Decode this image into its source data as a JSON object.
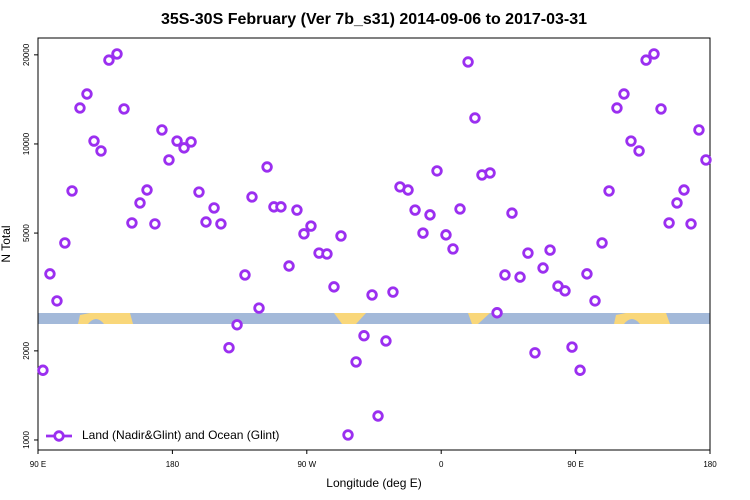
{
  "chart_data": {
    "type": "scatter",
    "title": "35S-30S February (Ver 7b_s31)   2014-09-06 to 2017-03-31",
    "x_label": "Longitude (deg E)",
    "y_label": "N Total",
    "x": [
      93.3,
      98,
      102.7,
      108,
      112.8,
      118.1,
      122.8,
      127.5,
      132.2,
      137.5,
      142.9,
      147.6,
      152.9,
      158.3,
      163,
      168.3,
      173,
      177.7,
      183.1,
      187.8,
      192.5,
      197.8,
      202.5,
      207.9,
      212.5,
      217.9,
      223.3,
      228.6,
      233.3,
      238,
      243.4,
      248,
      252.7,
      258.1,
      263.4,
      268.1,
      272.8,
      278.2,
      283.5,
      288.2,
      292.9,
      297.6,
      303,
      308.3,
      313.7,
      317.7,
      323,
      327.7,
      332.4,
      337.8,
      342.5,
      347.8,
      352.5,
      357.2,
      363.2,
      367.9,
      372.6,
      378,
      382.6,
      387.3,
      392.7,
      397.4,
      402.7,
      407.4,
      412.8,
      418.1,
      422.8,
      428.2,
      432.9,
      438.2,
      442.9,
      447.6,
      453,
      457.6,
      463,
      467.7,
      472.4,
      477.7,
      482.4,
      487.1,
      492.5,
      497.2,
      502.5,
      507.2,
      512.6,
      517.9,
      522.6,
      527.3,
      532.6,
      537.3
    ],
    "series": [
      {
        "name": "Land (Nadir&Glint) and Ocean (Glint)",
        "color": "#9b2ff0",
        "values": [
          1720,
          3640,
          2950,
          4630,
          6940,
          13230,
          14750,
          10230,
          9470,
          19200,
          20140,
          13130,
          5410,
          6320,
          6990,
          5370,
          11150,
          8830,
          10230,
          9700,
          10160,
          6880,
          5450,
          6080,
          5370,
          2050,
          2450,
          3610,
          6620,
          2790,
          8360,
          6130,
          6130,
          3870,
          5980,
          4970,
          5280,
          4280,
          4250,
          3290,
          4890,
          1040,
          1835,
          2250,
          3090,
          1205,
          2160,
          3160,
          7160,
          6990,
          5980,
          5000,
          5760,
          8110,
          4930,
          4420,
          6030,
          18920,
          12240,
          7860,
          7980,
          2690,
          3610,
          5840,
          3550,
          4280,
          1970,
          3810,
          4380,
          3310,
          3190,
          2060,
          1720,
          3640,
          2950,
          4630,
          6940,
          13230,
          14750,
          10230,
          9470,
          19200,
          20140,
          13130,
          5410,
          6320,
          6990,
          5370,
          11150,
          8830
        ]
      }
    ],
    "xlim": [
      90,
      540
    ],
    "xticks": [
      {
        "value": 90,
        "label": "90 E"
      },
      180,
      {
        "value": 270,
        "label": "90 W"
      },
      {
        "value": 360,
        "label": "0"
      },
      {
        "value": 450,
        "label": "90 E"
      },
      {
        "value": 540,
        "label": "180"
      }
    ],
    "ylim": [
      925,
      22800
    ],
    "yticks": [
      1000,
      2000,
      5000,
      10000,
      20000
    ],
    "log_y": true,
    "legend": "lower left"
  }
}
